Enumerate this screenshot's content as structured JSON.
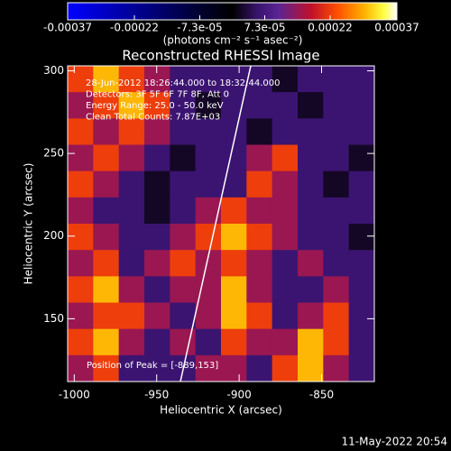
{
  "chart_data": {
    "type": "heatmap",
    "title": "Reconstructed RHESSI Image",
    "x_label": "Heliocentric X (arcsec)",
    "y_label": "Heliocentric Y (arcsec)",
    "xlim": [
      -1004,
      -818
    ],
    "ylim": [
      112,
      303
    ],
    "xticks": [
      -1000,
      -950,
      -900,
      -850
    ],
    "yticks": [
      150,
      200,
      250,
      300
    ],
    "zlim": [
      -0.00037,
      0.00037
    ],
    "colorscale": [
      [
        0,
        "#0000ff"
      ],
      [
        0.38,
        "#00003a"
      ],
      [
        0.5,
        "#000000"
      ],
      [
        0.58,
        "#3a1470"
      ],
      [
        0.64,
        "#5a2494"
      ],
      [
        0.74,
        "#c0102a"
      ],
      [
        0.82,
        "#ff5000"
      ],
      [
        0.9,
        "#ffb000"
      ],
      [
        0.96,
        "#ffff40"
      ],
      [
        1,
        "#ffffff"
      ]
    ],
    "colorbar": {
      "label": "(photons cm⁻² s⁻¹ asec⁻²)",
      "ticks": [
        -0.00037,
        -0.00022,
        {
          "value": -7.3e-05,
          "label": "-7.3e-05"
        },
        {
          "value": 7.3e-05,
          "label": "7.3e-05"
        },
        0.00022,
        0.00037
      ]
    },
    "z": [
      [
        0.00022,
        0.0003,
        0.00022,
        0.00015,
        6e-05,
        6e-05,
        6e-05,
        6e-05,
        2e-05,
        6e-05,
        6e-05,
        6e-05
      ],
      [
        0.00015,
        0.00022,
        0.0003,
        0.00022,
        6e-05,
        2e-05,
        6e-05,
        6e-05,
        6e-05,
        2e-05,
        6e-05,
        6e-05
      ],
      [
        0.00022,
        0.00015,
        0.00022,
        0.00015,
        6e-05,
        6e-05,
        6e-05,
        2e-05,
        6e-05,
        6e-05,
        6e-05,
        6e-05
      ],
      [
        0.00015,
        0.00022,
        0.00015,
        6e-05,
        2e-05,
        6e-05,
        6e-05,
        0.00015,
        0.00022,
        6e-05,
        6e-05,
        2e-05
      ],
      [
        0.00022,
        0.00015,
        6e-05,
        2e-05,
        6e-05,
        6e-05,
        6e-05,
        0.00022,
        0.00015,
        6e-05,
        2e-05,
        6e-05
      ],
      [
        0.00015,
        6e-05,
        6e-05,
        2e-05,
        6e-05,
        0.00015,
        0.00022,
        0.00015,
        0.00015,
        6e-05,
        6e-05,
        6e-05
      ],
      [
        0.00022,
        0.00015,
        6e-05,
        6e-05,
        0.00015,
        0.00022,
        0.0003,
        0.00022,
        0.00015,
        6e-05,
        6e-05,
        2e-05
      ],
      [
        0.00015,
        0.00022,
        6e-05,
        0.00015,
        0.00022,
        0.00015,
        0.00022,
        0.00015,
        6e-05,
        0.00015,
        6e-05,
        6e-05
      ],
      [
        0.00022,
        0.0003,
        0.00015,
        6e-05,
        0.00015,
        0.00015,
        0.0003,
        0.00015,
        6e-05,
        6e-05,
        0.00015,
        6e-05
      ],
      [
        0.00015,
        0.00022,
        0.00022,
        0.00015,
        6e-05,
        0.00015,
        0.0003,
        0.00022,
        6e-05,
        0.00015,
        0.00022,
        6e-05
      ],
      [
        0.00022,
        0.0003,
        0.00015,
        6e-05,
        0.00015,
        6e-05,
        0.00022,
        0.00015,
        0.00015,
        0.0003,
        0.00022,
        6e-05
      ],
      [
        0.00015,
        0.00022,
        6e-05,
        6e-05,
        6e-05,
        0.00015,
        0.00015,
        6e-05,
        0.00022,
        0.0003,
        0.00015,
        6e-05
      ]
    ],
    "annotations": [
      "28-Jun-2012 18:26:44.000 to 18:32:44.000",
      "Detectors: 3F 5F 6F 7F 8F, Att 0",
      "Energy Range: 25.0 - 50.0 keV",
      "Clean    Total Counts: 7.87E+03"
    ],
    "peak_label": "Position of Peak = [-889,153]",
    "footer": "11-May-2022 20:54"
  }
}
